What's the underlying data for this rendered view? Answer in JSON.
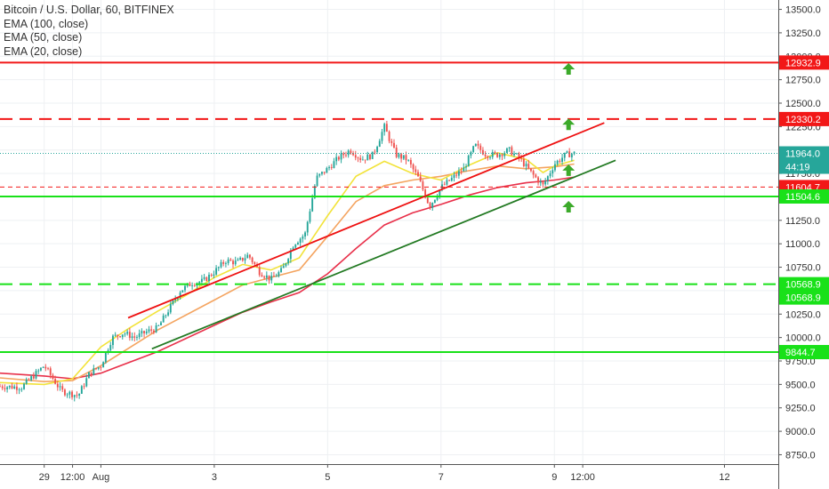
{
  "chart_data": {
    "type": "candlestick",
    "legend": [
      "Bitcoin / U.S. Dollar, 60, BITFINEX",
      "EMA (100, close)",
      "EMA (50, close)",
      "EMA (20, close)"
    ],
    "y_ticks": [
      13500,
      13250,
      13000,
      12750,
      12500,
      12250,
      12000,
      11750,
      11500,
      11250,
      11000,
      10750,
      10500,
      10250,
      10000,
      9750,
      9500,
      9250,
      9000,
      8750
    ],
    "y_tick_labels": [
      "13500.0",
      "13250.0",
      "13000.0",
      "12750.0",
      "12500.0",
      "12250.0",
      "12000.0",
      "11750.0",
      "11500.0",
      "11250.0",
      "11000.0",
      "10750.0",
      "10500.0",
      "10250.0",
      "10000.0",
      "9750.0",
      "9500.0",
      "9250.0",
      "9000.0",
      "8750.0"
    ],
    "ylim": [
      8650,
      13600
    ],
    "x_ticks": [
      {
        "label": "29",
        "day": 0.0
      },
      {
        "label": "12:00",
        "day": 0.5
      },
      {
        "label": "Aug",
        "day": 1.0
      },
      {
        "label": "3",
        "day": 3.0
      },
      {
        "label": "5",
        "day": 5.0
      },
      {
        "label": "7",
        "day": 7.0
      },
      {
        "label": "9",
        "day": 9.0
      },
      {
        "label": "12:00",
        "day": 9.5
      },
      {
        "label": "12",
        "day": 12.0
      }
    ],
    "xlim_day": [
      -0.78,
      12.95
    ],
    "levels": [
      {
        "value": 12932.9,
        "label": "12932.9",
        "color": "#f21818",
        "style": "solid"
      },
      {
        "value": 12330.2,
        "label": "12330.2",
        "color": "#f21818",
        "style": "dashed"
      },
      {
        "value": 11604.7,
        "label": "11604.7",
        "color": "#f21818",
        "style": "dashed-thin"
      },
      {
        "value": 11504.6,
        "label": "11504.6",
        "color": "#19e119",
        "style": "solid"
      },
      {
        "value": 10568.9,
        "label": "10568.9",
        "color": "#19e119",
        "style": "dashed"
      },
      {
        "value": 10568.9,
        "label": "10568.9",
        "color": "#19e119",
        "style": "label-only"
      },
      {
        "value": 9844.7,
        "label": "9844.7",
        "color": "#19e119",
        "style": "solid"
      }
    ],
    "current_price": {
      "value": 11964.0,
      "label": "11964.0",
      "countdown": "44:19",
      "color": "#26a69a"
    },
    "trendlines": [
      {
        "color": "#ee1111",
        "from": {
          "day": 1.48,
          "value": 10210
        },
        "to": {
          "day": 9.88,
          "value": 12290
        }
      },
      {
        "color": "#237a23",
        "from": {
          "day": 1.9,
          "value": 9880
        },
        "to": {
          "day": 10.08,
          "value": 11890
        }
      }
    ],
    "arrows": [
      {
        "day": 9.25,
        "value": 12860
      },
      {
        "day": 9.25,
        "value": 12270
      },
      {
        "day": 9.25,
        "value": 11780
      },
      {
        "day": 9.25,
        "value": 11390
      }
    ],
    "ema_colors": {
      "ema100": "#e8304a",
      "ema50": "#f4a460",
      "ema20": "#f2e33a"
    },
    "ema100": [
      [
        -0.78,
        9620
      ],
      [
        0,
        9590
      ],
      [
        0.5,
        9560
      ],
      [
        1,
        9620
      ],
      [
        2,
        9850
      ],
      [
        3,
        10130
      ],
      [
        3.5,
        10270
      ],
      [
        4,
        10380
      ],
      [
        4.5,
        10480
      ],
      [
        5,
        10680
      ],
      [
        5.5,
        10950
      ],
      [
        6,
        11200
      ],
      [
        6.5,
        11330
      ],
      [
        7,
        11420
      ],
      [
        7.5,
        11520
      ],
      [
        8,
        11600
      ],
      [
        8.5,
        11650
      ],
      [
        9,
        11680
      ],
      [
        9.35,
        11710
      ]
    ],
    "ema50": [
      [
        -0.78,
        9570
      ],
      [
        0,
        9530
      ],
      [
        0.5,
        9540
      ],
      [
        1,
        9700
      ],
      [
        2,
        10080
      ],
      [
        3,
        10400
      ],
      [
        3.5,
        10560
      ],
      [
        4,
        10640
      ],
      [
        4.5,
        10720
      ],
      [
        5,
        11080
      ],
      [
        5.5,
        11450
      ],
      [
        6,
        11620
      ],
      [
        6.5,
        11680
      ],
      [
        7,
        11720
      ],
      [
        7.5,
        11780
      ],
      [
        8,
        11830
      ],
      [
        8.5,
        11800
      ],
      [
        9,
        11820
      ],
      [
        9.35,
        11850
      ]
    ],
    "ema20": [
      [
        -0.78,
        9520
      ],
      [
        0,
        9500
      ],
      [
        0.5,
        9560
      ],
      [
        1,
        9900
      ],
      [
        1.5,
        10100
      ],
      [
        2,
        10280
      ],
      [
        2.5,
        10450
      ],
      [
        3,
        10640
      ],
      [
        3.5,
        10780
      ],
      [
        4,
        10720
      ],
      [
        4.5,
        10850
      ],
      [
        5,
        11300
      ],
      [
        5.5,
        11720
      ],
      [
        6,
        11880
      ],
      [
        6.5,
        11750
      ],
      [
        7,
        11680
      ],
      [
        7.5,
        11840
      ],
      [
        8,
        11970
      ],
      [
        8.5,
        11900
      ],
      [
        8.8,
        11760
      ],
      [
        9,
        11830
      ],
      [
        9.35,
        11890
      ]
    ],
    "price_path": [
      [
        -0.78,
        9480
      ],
      [
        -0.4,
        9470
      ],
      [
        0,
        9700
      ],
      [
        0.3,
        9430
      ],
      [
        0.6,
        9380
      ],
      [
        0.8,
        9620
      ],
      [
        1.0,
        9700
      ],
      [
        1.2,
        10000
      ],
      [
        1.4,
        10050
      ],
      [
        1.6,
        10000
      ],
      [
        1.8,
        10060
      ],
      [
        2.0,
        10100
      ],
      [
        2.2,
        10300
      ],
      [
        2.4,
        10500
      ],
      [
        2.6,
        10580
      ],
      [
        2.8,
        10600
      ],
      [
        3.0,
        10700
      ],
      [
        3.2,
        10820
      ],
      [
        3.4,
        10800
      ],
      [
        3.6,
        10880
      ],
      [
        3.8,
        10700
      ],
      [
        4.0,
        10620
      ],
      [
        4.2,
        10720
      ],
      [
        4.4,
        11000
      ],
      [
        4.6,
        11100
      ],
      [
        4.8,
        11700
      ],
      [
        5.0,
        11800
      ],
      [
        5.2,
        11920
      ],
      [
        5.4,
        12000
      ],
      [
        5.6,
        11900
      ],
      [
        5.8,
        11950
      ],
      [
        6.0,
        12250
      ],
      [
        6.2,
        11950
      ],
      [
        6.4,
        11900
      ],
      [
        6.6,
        11700
      ],
      [
        6.8,
        11400
      ],
      [
        7.0,
        11600
      ],
      [
        7.2,
        11700
      ],
      [
        7.4,
        11800
      ],
      [
        7.6,
        12050
      ],
      [
        7.8,
        11950
      ],
      [
        8.0,
        11950
      ],
      [
        8.2,
        12000
      ],
      [
        8.4,
        11900
      ],
      [
        8.6,
        11750
      ],
      [
        8.8,
        11620
      ],
      [
        9.0,
        11850
      ],
      [
        9.2,
        11950
      ],
      [
        9.35,
        11964
      ]
    ],
    "candle_count": 240
  }
}
